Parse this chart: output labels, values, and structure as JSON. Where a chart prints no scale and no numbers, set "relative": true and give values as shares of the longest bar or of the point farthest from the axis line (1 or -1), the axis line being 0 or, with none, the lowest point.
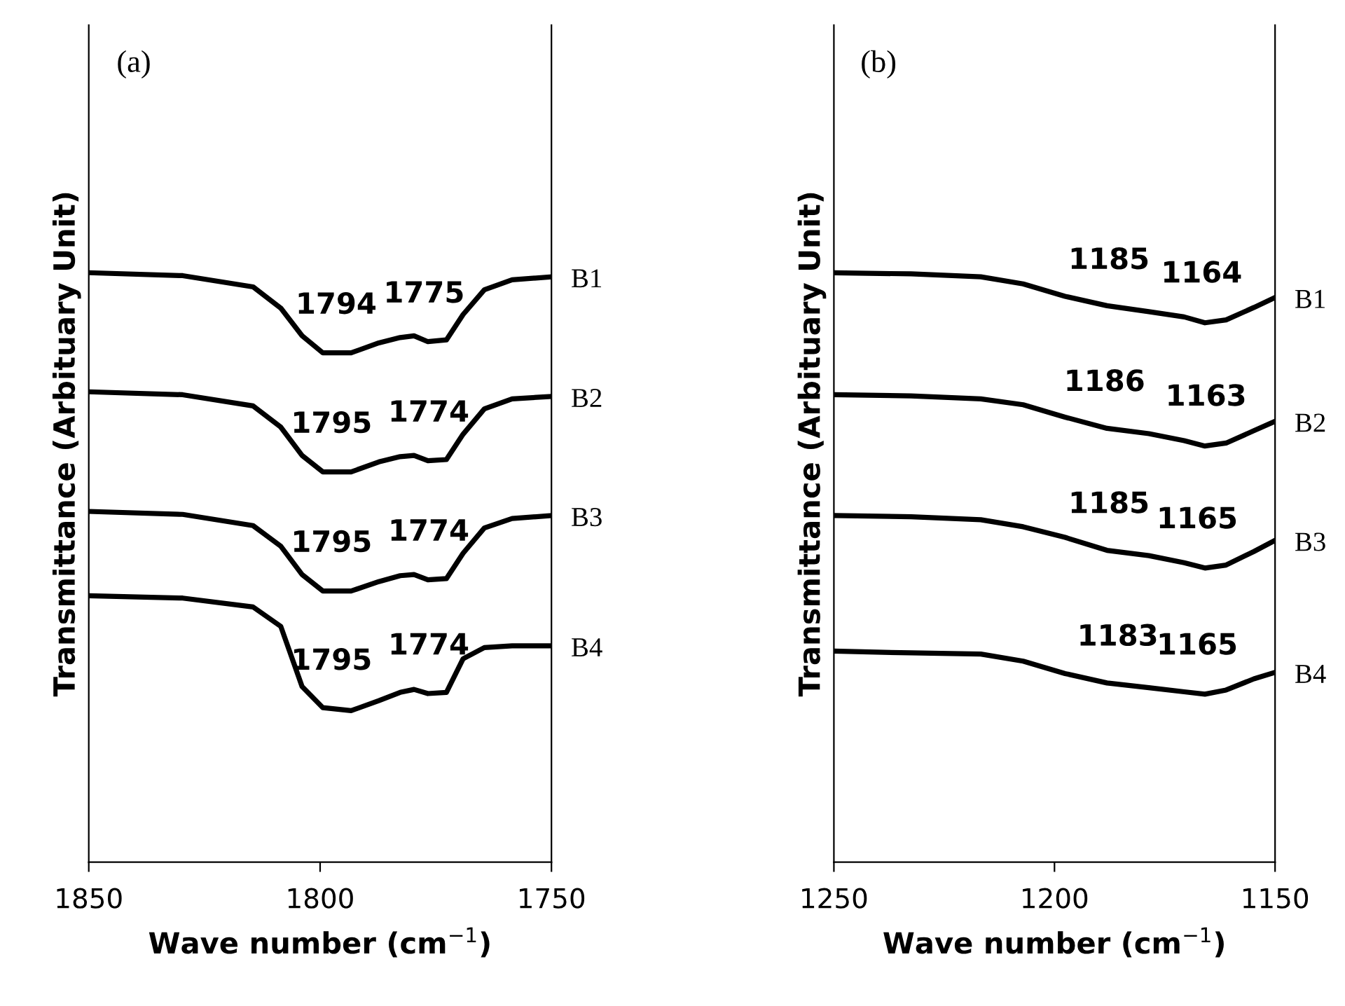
{
  "chart_data": [
    {
      "type": "line",
      "title": "(a)",
      "xlabel": "Wave number (cm$^{−1}$)",
      "ylabel": "Transmittance (Arbituary Unit)",
      "relative": true,
      "xlim": [
        1850,
        1750
      ],
      "xticks": [
        1850,
        1800,
        1750
      ],
      "tick_labels": "x",
      "grid": false,
      "legend": false,
      "marker": "none",
      "line_style": "solid",
      "x": [
        1850,
        1829.7,
        1814.5,
        1808.5,
        1803.9,
        1799.4,
        1793.3,
        1787.3,
        1782.7,
        1779.7,
        1776.7,
        1772.7,
        1769.1,
        1764.5,
        1758.5,
        1750
      ],
      "series": [
        {
          "name": "B1",
          "color": "#000000",
          "values": [
            1.0,
            0.995,
            0.976,
            0.94,
            0.893,
            0.864,
            0.864,
            0.881,
            0.89,
            0.893,
            0.883,
            0.886,
            0.929,
            0.971,
            0.988,
            0.993
          ]
        },
        {
          "name": "B2",
          "color": "#000000",
          "values": [
            0.798,
            0.793,
            0.774,
            0.738,
            0.69,
            0.662,
            0.662,
            0.679,
            0.688,
            0.69,
            0.681,
            0.683,
            0.726,
            0.769,
            0.786,
            0.79
          ]
        },
        {
          "name": "B3",
          "color": "#000000",
          "values": [
            0.595,
            0.59,
            0.571,
            0.536,
            0.488,
            0.46,
            0.46,
            0.476,
            0.486,
            0.488,
            0.479,
            0.481,
            0.524,
            0.567,
            0.583,
            0.588
          ]
        },
        {
          "name": "B4",
          "color": "#000000",
          "values": [
            0.452,
            0.448,
            0.433,
            0.4,
            0.298,
            0.262,
            0.257,
            0.274,
            0.288,
            0.293,
            0.286,
            0.288,
            0.345,
            0.364,
            0.367,
            0.367
          ]
        }
      ],
      "annotations": [
        {
          "text": "1794",
          "x": 1794,
          "y": 0.864
        },
        {
          "text": "1775",
          "x": 1775,
          "y": 0.883
        },
        {
          "text": "1795",
          "x": 1795,
          "y": 0.662
        },
        {
          "text": "1774",
          "x": 1774,
          "y": 0.681
        },
        {
          "text": "1795",
          "x": 1795,
          "y": 0.46
        },
        {
          "text": "1774",
          "x": 1774,
          "y": 0.479
        },
        {
          "text": "1795",
          "x": 1795,
          "y": 0.26
        },
        {
          "text": "1774",
          "x": 1774,
          "y": 0.286
        }
      ]
    },
    {
      "type": "line",
      "title": "(b)",
      "xlabel": "Wave number (cm$^{−1}$)",
      "ylabel": "Transmittance (Arbituary Unit)",
      "relative": true,
      "xlim": [
        1250,
        1150
      ],
      "xticks": [
        1250,
        1200,
        1150
      ],
      "tick_labels": "x",
      "grid": false,
      "legend": false,
      "marker": "none",
      "line_style": "solid",
      "x": [
        1250,
        1232.5,
        1216.7,
        1207.1,
        1197.6,
        1188.1,
        1178.6,
        1170.6,
        1165.9,
        1161.1,
        1154.8,
        1150
      ],
      "series": [
        {
          "name": "B1",
          "color": "#000000",
          "values": [
            1.0,
            0.998,
            0.993,
            0.981,
            0.96,
            0.944,
            0.934,
            0.925,
            0.915,
            0.92,
            0.941,
            0.958
          ]
        },
        {
          "name": "B2",
          "color": "#000000",
          "values": [
            0.793,
            0.791,
            0.786,
            0.776,
            0.755,
            0.736,
            0.727,
            0.715,
            0.706,
            0.711,
            0.732,
            0.748
          ]
        },
        {
          "name": "B3",
          "color": "#000000",
          "values": [
            0.588,
            0.586,
            0.581,
            0.569,
            0.551,
            0.529,
            0.52,
            0.508,
            0.499,
            0.504,
            0.527,
            0.546
          ]
        },
        {
          "name": "B4",
          "color": "#000000",
          "values": [
            0.358,
            0.355,
            0.353,
            0.341,
            0.32,
            0.304,
            0.296,
            0.289,
            0.285,
            0.292,
            0.311,
            0.322
          ]
        }
      ],
      "annotations": [
        {
          "text": "1185",
          "x": 1185,
          "y": 0.94
        },
        {
          "text": "1164",
          "x": 1164,
          "y": 0.917
        },
        {
          "text": "1186",
          "x": 1186,
          "y": 0.733
        },
        {
          "text": "1163",
          "x": 1163,
          "y": 0.708
        },
        {
          "text": "1185",
          "x": 1185,
          "y": 0.526
        },
        {
          "text": "1165",
          "x": 1165,
          "y": 0.5
        },
        {
          "text": "1183",
          "x": 1183,
          "y": 0.301
        },
        {
          "text": "1165",
          "x": 1165,
          "y": 0.286
        }
      ]
    }
  ]
}
